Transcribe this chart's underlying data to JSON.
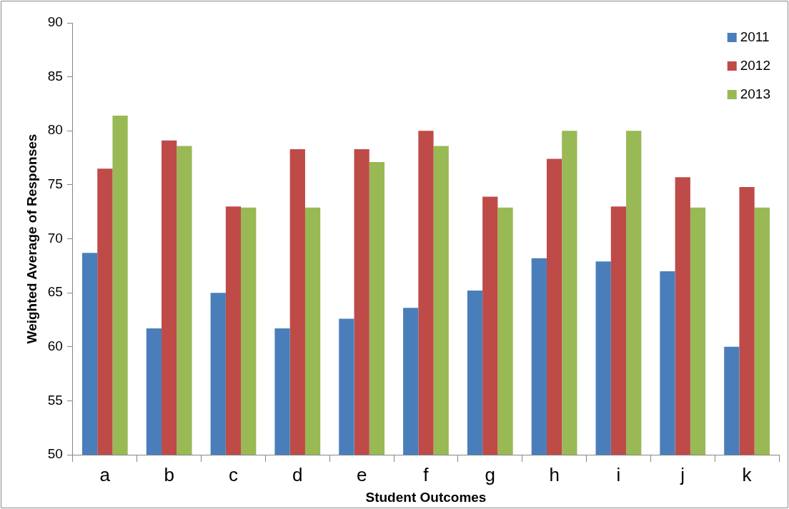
{
  "chart_data": {
    "type": "bar",
    "xlabel": "Student Outcomes",
    "ylabel": "Weighted Average of Responses",
    "categories": [
      "a",
      "b",
      "c",
      "d",
      "e",
      "f",
      "g",
      "h",
      "i",
      "j",
      "k"
    ],
    "series": [
      {
        "name": "2011",
        "color": "#4a7ebb",
        "values": [
          68.7,
          61.7,
          65.0,
          61.7,
          62.6,
          63.6,
          65.2,
          68.2,
          67.9,
          67.0,
          60.0
        ]
      },
      {
        "name": "2012",
        "color": "#be4b48",
        "values": [
          76.5,
          79.1,
          73.0,
          78.3,
          78.3,
          80.0,
          73.9,
          77.4,
          73.0,
          75.7,
          74.8
        ]
      },
      {
        "name": "2013",
        "color": "#98b954",
        "values": [
          81.4,
          78.6,
          72.9,
          72.9,
          77.1,
          78.6,
          72.9,
          80.0,
          80.0,
          72.9,
          72.9
        ]
      }
    ],
    "ylim": [
      50,
      90
    ],
    "yticks": [
      50,
      55,
      60,
      65,
      70,
      75,
      80,
      85,
      90
    ],
    "grid": false,
    "legend": "top right"
  }
}
